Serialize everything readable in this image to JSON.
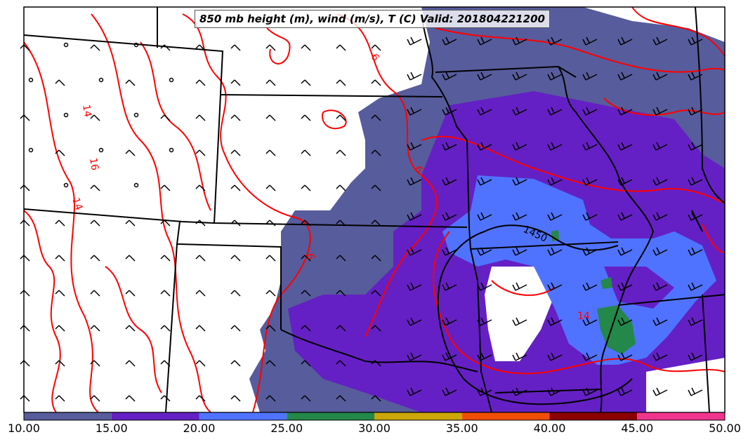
{
  "title": "850 mb height (m), wind (m/s), T (C) Valid: 201804221200",
  "colorbar": {
    "min": 10,
    "max": 50,
    "tick_labels": [
      "10.00",
      "15.00",
      "20.00",
      "25.00",
      "30.00",
      "35.00",
      "40.00",
      "45.00",
      "50.00"
    ],
    "colors": [
      "#575C9C",
      "#6420C4",
      "#4F73FF",
      "#23884A",
      "#CCA707",
      "#F04E06",
      "#8B0000",
      "#F0358E"
    ]
  },
  "contour_labels": {
    "temperature": [
      "14",
      "16",
      "14",
      "6",
      "6",
      "6",
      "14"
    ],
    "height": [
      "1450"
    ]
  },
  "colors": {
    "temperature_contour": "#ff0000",
    "boundary": "#000000",
    "background": "#ffffff"
  },
  "wind_barbs": "present across domain",
  "basemap": "US states (Central Plains / Mississippi Valley)"
}
